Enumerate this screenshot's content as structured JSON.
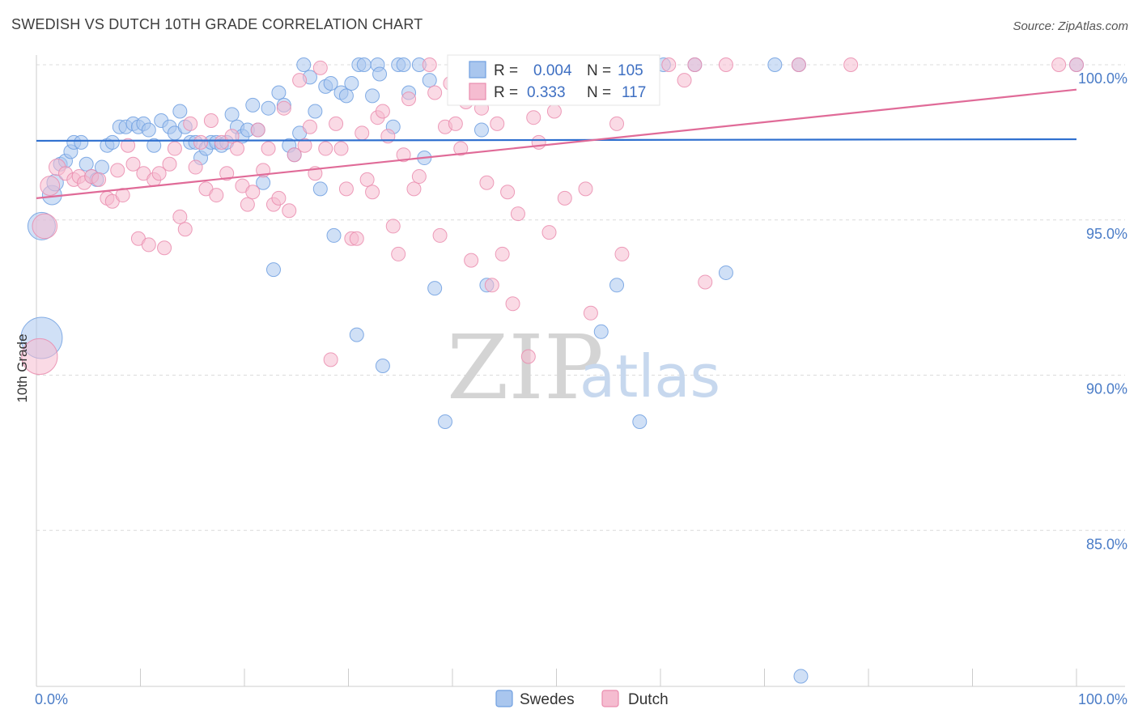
{
  "title": "SWEDISH VS DUTCH 10TH GRADE CORRELATION CHART",
  "source": "Source: ZipAtlas.com",
  "watermark": {
    "zip": "ZIP",
    "atlas": "atlas"
  },
  "chart_data": {
    "type": "scatter",
    "xlabel": "",
    "ylabel": "10th Grade",
    "xlim": [
      0,
      100
    ],
    "ylim": [
      80.3,
      100.8
    ],
    "x_tick_labels": [
      {
        "value": 0,
        "label": "0.0%"
      },
      {
        "value": 100,
        "label": "100.0%"
      }
    ],
    "y_ticks": [
      {
        "value": 100,
        "label": "100.0%"
      },
      {
        "value": 95,
        "label": "95.0%"
      },
      {
        "value": 90,
        "label": "90.0%"
      },
      {
        "value": 85,
        "label": "85.0%"
      }
    ],
    "grid": "horizontal dashed",
    "legend_position": "top-center",
    "stats": [
      {
        "r_label": "R =",
        "r_value": "0.004",
        "n_label": "N =",
        "n_value": "105"
      },
      {
        "r_label": "R =",
        "r_value": "0.333",
        "n_label": "N =",
        "n_value": "117"
      }
    ],
    "series": [
      {
        "name": "Swedes",
        "color": "#6f9fe0",
        "fill": "#a9c6ee",
        "line_color": "#2e6fcf",
        "trend": [
          [
            0,
            97.55
          ],
          [
            100,
            97.6
          ]
        ],
        "points": [
          [
            0.5,
            91.2,
            3
          ],
          [
            0.5,
            94.8,
            2
          ],
          [
            1.5,
            95.8,
            1.4
          ],
          [
            1.8,
            96.2,
            1.2
          ],
          [
            2.3,
            96.8,
            1
          ],
          [
            2.8,
            96.9,
            1
          ],
          [
            3.3,
            97.2,
            1
          ],
          [
            3.6,
            97.5,
            1
          ],
          [
            4.3,
            97.5,
            1
          ],
          [
            4.8,
            96.8,
            1
          ],
          [
            5.3,
            96.4,
            1
          ],
          [
            5.8,
            96.3,
            1
          ],
          [
            6.3,
            96.7,
            1
          ],
          [
            6.8,
            97.4,
            1
          ],
          [
            7.3,
            97.5,
            1
          ],
          [
            8.0,
            98.0,
            1
          ],
          [
            8.6,
            98.0,
            1
          ],
          [
            9.3,
            98.1,
            1
          ],
          [
            9.8,
            98.0,
            1
          ],
          [
            10.3,
            98.1,
            1
          ],
          [
            10.8,
            97.9,
            1
          ],
          [
            11.3,
            97.4,
            1
          ],
          [
            12.0,
            98.2,
            1
          ],
          [
            12.8,
            98.0,
            1
          ],
          [
            13.3,
            97.8,
            1
          ],
          [
            13.8,
            98.5,
            1
          ],
          [
            14.3,
            98.0,
            1
          ],
          [
            14.8,
            97.5,
            1
          ],
          [
            15.3,
            97.5,
            1
          ],
          [
            15.8,
            97.0,
            1
          ],
          [
            16.3,
            97.3,
            1
          ],
          [
            16.8,
            97.5,
            1
          ],
          [
            17.3,
            97.5,
            1
          ],
          [
            17.8,
            97.4,
            1
          ],
          [
            18.3,
            97.5,
            1
          ],
          [
            18.8,
            98.4,
            1
          ],
          [
            19.3,
            98.0,
            1
          ],
          [
            19.8,
            97.7,
            1
          ],
          [
            20.3,
            97.9,
            1
          ],
          [
            20.8,
            98.7,
            1
          ],
          [
            21.3,
            97.9,
            1
          ],
          [
            21.8,
            96.2,
            1
          ],
          [
            22.3,
            98.6,
            1
          ],
          [
            22.8,
            93.4,
            1
          ],
          [
            23.3,
            99.1,
            1
          ],
          [
            23.8,
            98.7,
            1
          ],
          [
            24.3,
            97.4,
            1
          ],
          [
            24.8,
            97.1,
            1
          ],
          [
            25.3,
            97.8,
            1
          ],
          [
            25.7,
            100.0,
            1
          ],
          [
            26.3,
            99.6,
            1
          ],
          [
            26.8,
            98.5,
            1
          ],
          [
            27.3,
            96.0,
            1
          ],
          [
            27.8,
            99.3,
            1
          ],
          [
            28.3,
            99.4,
            1
          ],
          [
            28.6,
            94.5,
            1
          ],
          [
            29.3,
            99.1,
            1
          ],
          [
            29.8,
            99.0,
            1
          ],
          [
            30.3,
            99.4,
            1
          ],
          [
            30.8,
            91.3,
            1
          ],
          [
            31.0,
            100.0,
            1
          ],
          [
            31.5,
            100.0,
            1
          ],
          [
            32.3,
            99.0,
            1
          ],
          [
            32.8,
            100.0,
            1
          ],
          [
            33.0,
            99.7,
            1
          ],
          [
            33.3,
            90.3,
            1
          ],
          [
            34.3,
            98.0,
            1
          ],
          [
            34.8,
            100.0,
            1
          ],
          [
            35.3,
            100.0,
            1
          ],
          [
            35.8,
            99.1,
            1
          ],
          [
            36.8,
            100.0,
            1
          ],
          [
            37.3,
            97.0,
            1
          ],
          [
            37.8,
            99.5,
            1
          ],
          [
            38.3,
            92.8,
            1
          ],
          [
            39.3,
            88.5,
            1
          ],
          [
            40.3,
            100.0,
            1
          ],
          [
            42.3,
            100.0,
            1
          ],
          [
            42.8,
            97.9,
            1
          ],
          [
            43.3,
            92.9,
            1
          ],
          [
            46.3,
            100.0,
            1
          ],
          [
            47.3,
            100.0,
            1
          ],
          [
            52.8,
            100.0,
            1
          ],
          [
            53.3,
            100.0,
            1
          ],
          [
            54.3,
            91.4,
            1
          ],
          [
            55.8,
            92.9,
            1
          ],
          [
            56.3,
            100.0,
            1
          ],
          [
            58.0,
            88.5,
            1
          ],
          [
            60.3,
            100.0,
            1
          ],
          [
            63.3,
            100.0,
            1
          ],
          [
            66.3,
            93.3,
            1
          ],
          [
            71.0,
            100.0,
            1
          ],
          [
            73.3,
            100.0,
            1
          ],
          [
            73.5,
            80.3,
            1
          ],
          [
            100.0,
            100.0,
            1
          ]
        ]
      },
      {
        "name": "Dutch",
        "color": "#ea8cae",
        "fill": "#f5bcd0",
        "line_color": "#e06b98",
        "trend": [
          [
            0,
            95.7
          ],
          [
            100,
            99.2
          ]
        ],
        "points": [
          [
            0.3,
            90.6,
            2.6
          ],
          [
            0.8,
            94.8,
            1.8
          ],
          [
            1.3,
            96.1,
            1.4
          ],
          [
            2.0,
            96.7,
            1.2
          ],
          [
            2.8,
            96.5,
            1
          ],
          [
            3.6,
            96.3,
            1
          ],
          [
            4.1,
            96.4,
            1
          ],
          [
            4.6,
            96.2,
            1
          ],
          [
            5.3,
            96.4,
            1
          ],
          [
            6.0,
            96.3,
            1
          ],
          [
            6.8,
            95.7,
            1
          ],
          [
            7.3,
            95.6,
            1
          ],
          [
            7.8,
            96.6,
            1
          ],
          [
            8.3,
            95.8,
            1
          ],
          [
            8.8,
            97.4,
            1
          ],
          [
            9.3,
            96.8,
            1
          ],
          [
            9.8,
            94.4,
            1
          ],
          [
            10.3,
            96.5,
            1
          ],
          [
            10.8,
            94.2,
            1
          ],
          [
            11.3,
            96.3,
            1
          ],
          [
            11.8,
            96.5,
            1
          ],
          [
            12.3,
            94.1,
            1
          ],
          [
            12.8,
            96.8,
            1
          ],
          [
            13.3,
            97.3,
            1
          ],
          [
            13.8,
            95.1,
            1
          ],
          [
            14.3,
            94.7,
            1
          ],
          [
            14.8,
            98.1,
            1
          ],
          [
            15.3,
            96.7,
            1
          ],
          [
            15.8,
            97.5,
            1
          ],
          [
            16.3,
            96.0,
            1
          ],
          [
            16.8,
            98.2,
            1
          ],
          [
            17.3,
            95.8,
            1
          ],
          [
            17.8,
            97.5,
            1
          ],
          [
            18.3,
            96.5,
            1
          ],
          [
            18.8,
            97.7,
            1
          ],
          [
            19.3,
            97.3,
            1
          ],
          [
            19.8,
            96.1,
            1
          ],
          [
            20.3,
            95.5,
            1
          ],
          [
            20.8,
            95.9,
            1
          ],
          [
            21.3,
            97.9,
            1
          ],
          [
            21.8,
            96.6,
            1
          ],
          [
            22.3,
            97.3,
            1
          ],
          [
            22.8,
            95.5,
            1
          ],
          [
            23.3,
            95.7,
            1
          ],
          [
            23.8,
            98.6,
            1
          ],
          [
            24.3,
            95.3,
            1
          ],
          [
            24.8,
            97.1,
            1
          ],
          [
            25.3,
            99.5,
            1
          ],
          [
            25.8,
            97.4,
            1
          ],
          [
            26.3,
            98.0,
            1
          ],
          [
            26.8,
            96.5,
            1
          ],
          [
            27.3,
            99.9,
            1
          ],
          [
            27.8,
            97.3,
            1
          ],
          [
            28.3,
            90.5,
            1
          ],
          [
            28.8,
            98.1,
            1
          ],
          [
            29.3,
            97.3,
            1
          ],
          [
            29.8,
            96.0,
            1
          ],
          [
            30.3,
            94.4,
            1
          ],
          [
            30.8,
            94.4,
            1
          ],
          [
            31.3,
            97.8,
            1
          ],
          [
            31.8,
            96.3,
            1
          ],
          [
            32.3,
            95.9,
            1
          ],
          [
            32.8,
            98.3,
            1
          ],
          [
            33.3,
            98.5,
            1
          ],
          [
            33.8,
            97.7,
            1
          ],
          [
            34.3,
            94.8,
            1
          ],
          [
            34.8,
            93.9,
            1
          ],
          [
            35.3,
            97.1,
            1
          ],
          [
            35.8,
            98.9,
            1
          ],
          [
            36.3,
            96.0,
            1
          ],
          [
            36.8,
            96.4,
            1
          ],
          [
            37.8,
            100.0,
            1
          ],
          [
            38.3,
            99.1,
            1
          ],
          [
            38.8,
            94.5,
            1
          ],
          [
            39.3,
            98.0,
            1
          ],
          [
            39.8,
            99.4,
            1
          ],
          [
            40.3,
            98.1,
            1
          ],
          [
            40.8,
            97.3,
            1
          ],
          [
            41.3,
            98.8,
            1
          ],
          [
            41.8,
            93.7,
            1
          ],
          [
            42.3,
            100.0,
            1
          ],
          [
            42.8,
            98.6,
            1
          ],
          [
            43.3,
            96.2,
            1
          ],
          [
            43.8,
            92.9,
            1
          ],
          [
            44.3,
            98.1,
            1
          ],
          [
            44.8,
            93.9,
            1
          ],
          [
            45.3,
            95.9,
            1
          ],
          [
            45.8,
            92.3,
            1
          ],
          [
            46.3,
            95.2,
            1
          ],
          [
            46.8,
            99.9,
            1
          ],
          [
            47.3,
            90.6,
            1
          ],
          [
            47.8,
            98.3,
            1
          ],
          [
            48.3,
            97.5,
            1
          ],
          [
            48.8,
            100.0,
            1
          ],
          [
            49.3,
            94.6,
            1
          ],
          [
            49.8,
            98.5,
            1
          ],
          [
            50.3,
            100.0,
            1
          ],
          [
            50.8,
            95.7,
            1
          ],
          [
            52.3,
            99.9,
            1
          ],
          [
            52.8,
            96.0,
            1
          ],
          [
            53.3,
            92.0,
            1
          ],
          [
            54.3,
            100.0,
            1
          ],
          [
            55.8,
            98.1,
            1
          ],
          [
            56.3,
            93.9,
            1
          ],
          [
            56.8,
            100.0,
            1
          ],
          [
            57.3,
            99.0,
            1
          ],
          [
            60.8,
            100.0,
            1
          ],
          [
            62.3,
            99.5,
            1
          ],
          [
            63.3,
            100.0,
            1
          ],
          [
            64.3,
            93.0,
            1
          ],
          [
            66.3,
            100.0,
            1
          ],
          [
            73.3,
            100.0,
            1
          ],
          [
            78.3,
            100.0,
            1
          ],
          [
            98.3,
            100.0,
            1
          ],
          [
            100.0,
            100.0,
            1
          ]
        ]
      }
    ]
  }
}
